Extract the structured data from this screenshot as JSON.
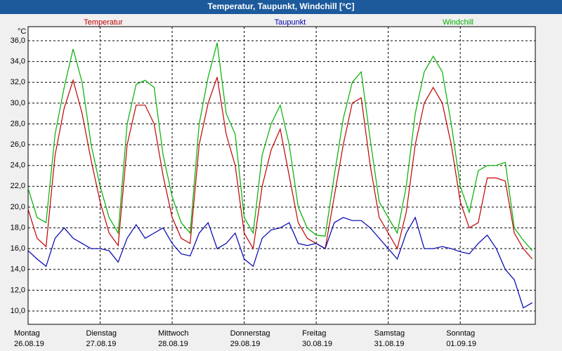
{
  "chart_data": {
    "type": "line",
    "title": "Temperatur, Taupunkt, Windchill [°C]",
    "y_unit": "°C",
    "x": [
      0,
      3,
      6,
      9,
      12,
      15,
      18,
      21,
      24,
      27,
      30,
      33,
      36,
      39,
      42,
      45,
      48,
      51,
      54,
      57,
      60,
      63,
      66,
      69,
      72,
      75,
      78,
      81,
      84,
      87,
      90,
      93,
      96,
      99,
      102,
      105,
      108,
      111,
      114,
      117,
      120,
      123,
      126,
      129,
      132,
      135,
      138,
      141,
      144,
      147,
      150,
      153,
      156,
      159,
      162,
      165,
      168
    ],
    "xlim": [
      0,
      169
    ],
    "xticks": [
      0,
      24,
      48,
      72,
      96,
      120,
      144
    ],
    "days": [
      {
        "name": "Montag",
        "date": "26.08.19"
      },
      {
        "name": "Dienstag",
        "date": "27.08.19"
      },
      {
        "name": "Mittwoch",
        "date": "28.08.19"
      },
      {
        "name": "Donnerstag",
        "date": "29.08.19"
      },
      {
        "name": "Freitag",
        "date": "30.08.19"
      },
      {
        "name": "Samstag",
        "date": "31.08.19"
      },
      {
        "name": "Sonntag",
        "date": "01.09.19"
      }
    ],
    "ylim": [
      8.72,
      37.35
    ],
    "yticks": [
      {
        "value": 10,
        "label": "10,0"
      },
      {
        "value": 12,
        "label": "12,0"
      },
      {
        "value": 14,
        "label": "14,0"
      },
      {
        "value": 16,
        "label": "16,0"
      },
      {
        "value": 18,
        "label": "18,0"
      },
      {
        "value": 20,
        "label": "20,0"
      },
      {
        "value": 22,
        "label": "22,0"
      },
      {
        "value": 24,
        "label": "24,0"
      },
      {
        "value": 26,
        "label": "26,0"
      },
      {
        "value": 28,
        "label": "28,0"
      },
      {
        "value": 30,
        "label": "30,0"
      },
      {
        "value": 32,
        "label": "32,0"
      },
      {
        "value": 34,
        "label": "34,0"
      },
      {
        "value": 36,
        "label": "36,0"
      }
    ],
    "grid": true,
    "series": [
      {
        "name": "Temperatur",
        "color": "#c00000",
        "values": [
          19.8,
          17,
          16.2,
          25,
          29.5,
          32.2,
          29,
          24.5,
          20.5,
          17.5,
          16.3,
          26,
          29.8,
          29.8,
          28,
          23,
          19,
          17,
          16.5,
          26,
          30,
          32.5,
          27,
          24,
          17.5,
          16,
          22,
          25.5,
          27.5,
          23,
          18.5,
          17,
          16.5,
          16,
          21,
          26,
          30,
          30.5,
          24,
          19,
          17.5,
          16,
          19.5,
          26,
          30,
          31.5,
          30,
          26,
          20.5,
          18,
          18.5,
          22.8,
          22.8,
          22.5,
          17.5,
          16,
          15
        ]
      },
      {
        "name": "Taupunkt",
        "color": "#0000b0",
        "values": [
          15.8,
          15,
          14.3,
          17,
          18,
          17,
          16.5,
          16,
          16,
          15.8,
          14.7,
          17,
          18.3,
          17,
          17.5,
          18,
          16.5,
          15.5,
          15.3,
          17.5,
          18.5,
          16,
          16.5,
          17.5,
          15,
          14.3,
          17,
          17.8,
          18,
          18.5,
          16.5,
          16.3,
          16.5,
          16,
          18.5,
          19,
          18.7,
          18.7,
          18,
          17,
          16,
          15,
          17.5,
          19,
          16,
          16,
          16.2,
          16,
          15.7,
          15.5,
          16.5,
          17.3,
          16,
          14,
          13,
          10.3,
          10.8
        ]
      },
      {
        "name": "Windchill",
        "color": "#00b000",
        "values": [
          21.8,
          19,
          18.5,
          27,
          31.5,
          35.2,
          32,
          26,
          22,
          19,
          17.5,
          28,
          31.8,
          32.2,
          31.5,
          25,
          21,
          18.5,
          17.5,
          28,
          32.5,
          35.8,
          29,
          27,
          19,
          17.5,
          25,
          28,
          29.8,
          26,
          20,
          18,
          17.3,
          17.2,
          23,
          28.5,
          32,
          33,
          26.5,
          20.5,
          19,
          17.5,
          22,
          29,
          33,
          34.5,
          33,
          28,
          22,
          19.5,
          23.5,
          24,
          24,
          24.3,
          18,
          16.8,
          15.8
        ]
      }
    ]
  }
}
